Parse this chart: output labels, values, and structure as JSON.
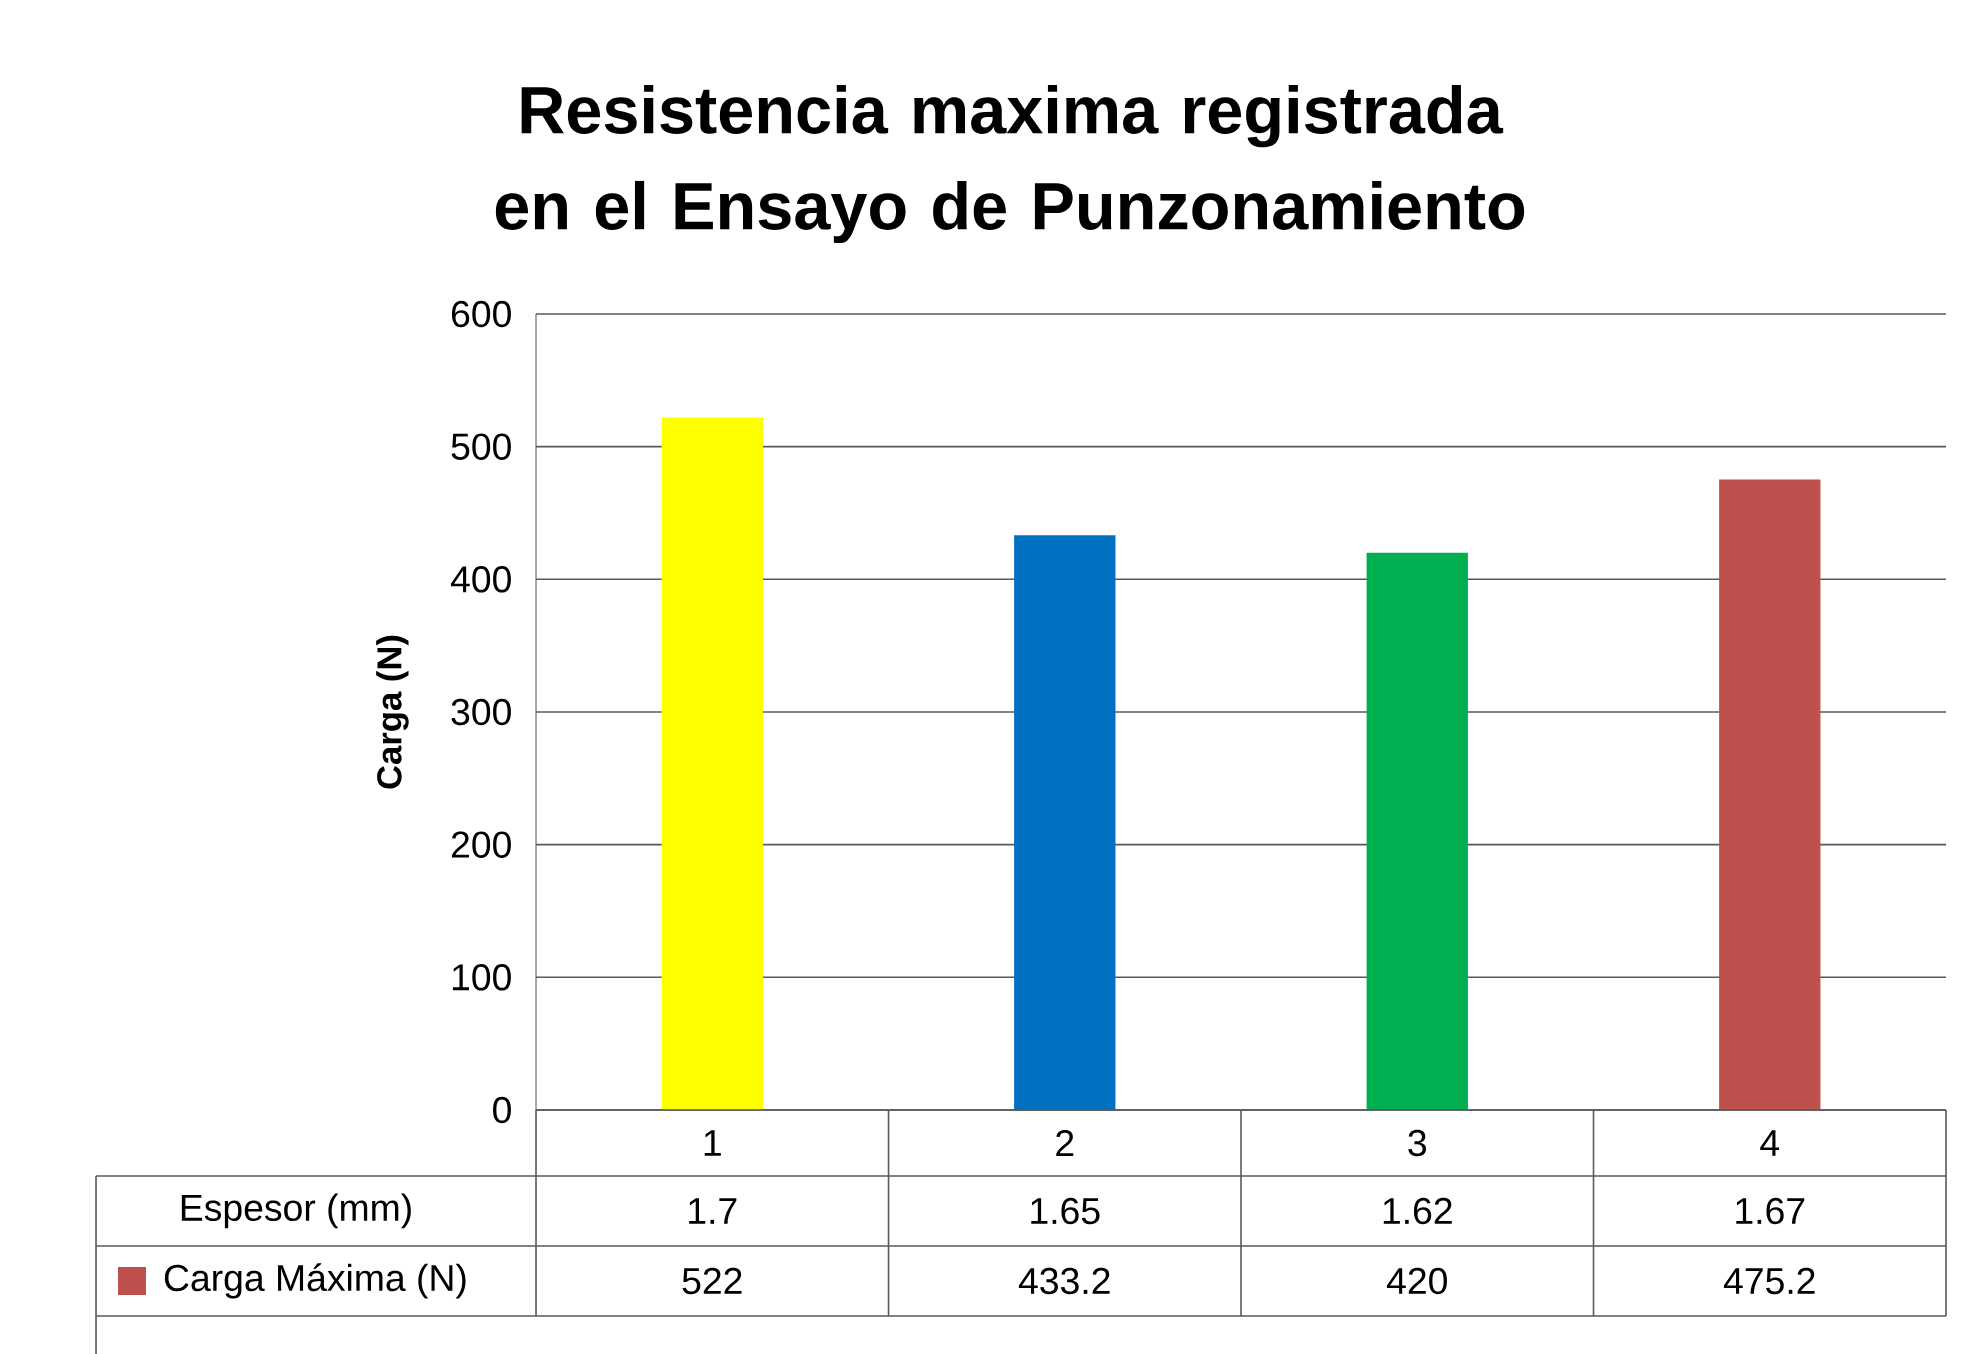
{
  "chart_data": {
    "type": "bar",
    "title": "Resistencia maxima registrada en el Ensayo de Punzonamiento",
    "ylabel": "Carga (N)",
    "categories": [
      "1",
      "2",
      "3",
      "4"
    ],
    "series": [
      {
        "name": "Carga Máxima (N)",
        "color": "#c0504d",
        "colors": [
          "#ffff00",
          "#0070c0",
          "#00b050",
          "#c0504d"
        ],
        "values": [
          522,
          433.2,
          420,
          475.2
        ],
        "value_labels": [
          "522",
          "433.2",
          "420",
          "475.2"
        ]
      }
    ],
    "ylim": [
      0,
      600
    ],
    "yticks": [
      0,
      100,
      200,
      300,
      400,
      500,
      600
    ],
    "grid": "y",
    "legend": "bottom left",
    "annotations": [
      "Espesor (mm)",
      "1.7",
      "1.65",
      "1.62",
      "1.67"
    ]
  }
}
